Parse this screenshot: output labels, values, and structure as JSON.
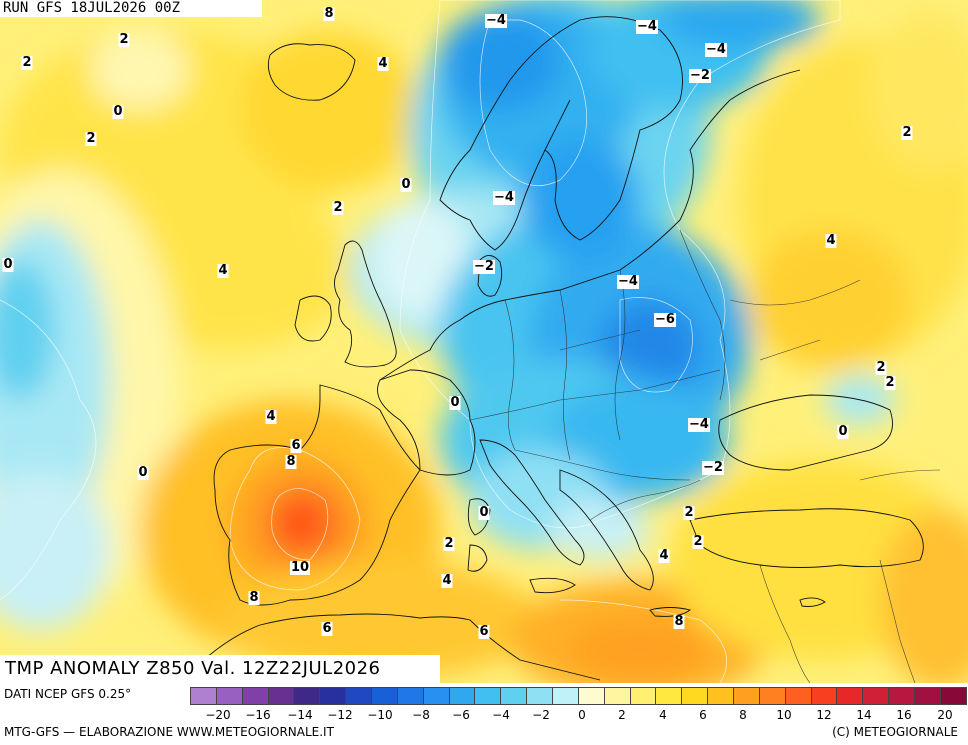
{
  "header": {
    "run": "RUN GFS 18JUL2026 00Z"
  },
  "title": "TMP ANOMALY Z850 Val. 12Z22JUL2026",
  "footer": {
    "source": "DATI NCEP GFS 0.25°",
    "credit_left": "MTG-GFS — ELABORAZIONE WWW.METEOGIORNALE.IT",
    "credit_right": "(C) METEOGIORNALE"
  },
  "colorbar": {
    "colors": [
      "#b080d0",
      "#9860c0",
      "#8040a8",
      "#683090",
      "#402888",
      "#2830a0",
      "#2048c0",
      "#1860d8",
      "#2078e8",
      "#2890f0",
      "#30a8f0",
      "#40c0f0",
      "#60d0f0",
      "#90e0f4",
      "#c0f0f8",
      "#fffbd0",
      "#fff4a0",
      "#fff070",
      "#ffe840",
      "#ffd820",
      "#ffc020",
      "#ffa020",
      "#ff8020",
      "#ff6020",
      "#f84020",
      "#e82828",
      "#d02038",
      "#b81840",
      "#a01040",
      "#880838"
    ],
    "tick_labels": [
      "−20",
      "−16",
      "−14",
      "−12",
      "−10",
      "−8",
      "−6",
      "−4",
      "−2",
      "0",
      "2",
      "4",
      "6",
      "8",
      "10",
      "12",
      "14",
      "16",
      "20"
    ]
  },
  "isolines": [
    {
      "label": "8"
    },
    {
      "label": "2"
    },
    {
      "label": "2"
    },
    {
      "label": "4"
    },
    {
      "label": "0"
    },
    {
      "label": "2"
    },
    {
      "label": "−4"
    },
    {
      "label": "−4"
    },
    {
      "label": "−4"
    },
    {
      "label": "−2"
    },
    {
      "label": "2"
    },
    {
      "label": "0"
    },
    {
      "label": "2"
    },
    {
      "label": "−4"
    },
    {
      "label": "0"
    },
    {
      "label": "4"
    },
    {
      "label": "−2"
    },
    {
      "label": "4"
    },
    {
      "label": "−4"
    },
    {
      "label": "−6"
    },
    {
      "label": "2"
    },
    {
      "label": "2"
    },
    {
      "label": "4"
    },
    {
      "label": "0"
    },
    {
      "label": "6"
    },
    {
      "label": "8"
    },
    {
      "label": "0"
    },
    {
      "label": "0"
    },
    {
      "label": "−4"
    },
    {
      "label": "−2"
    },
    {
      "label": "0"
    },
    {
      "label": "2"
    },
    {
      "label": "2"
    },
    {
      "label": "4"
    },
    {
      "label": "10"
    },
    {
      "label": "4"
    },
    {
      "label": "2"
    },
    {
      "label": "8"
    },
    {
      "label": "6"
    },
    {
      "label": "6"
    },
    {
      "label": "8"
    }
  ]
}
